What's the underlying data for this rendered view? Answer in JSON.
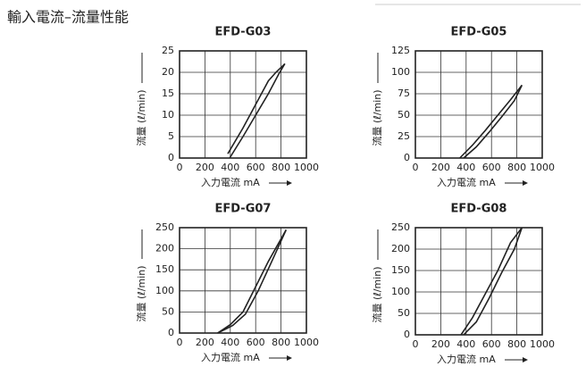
{
  "header": {
    "title": "輸入電流–流量性能"
  },
  "chart_data": [
    {
      "type": "line",
      "title": "EFD-G03",
      "y_label": "流量 (ℓ/min)",
      "x_label": "入力電流 mA",
      "xlim": [
        0,
        1000
      ],
      "xticks": [
        0,
        200,
        400,
        600,
        800,
        1000
      ],
      "ylim": [
        0,
        25
      ],
      "yticks": [
        0,
        5,
        10,
        15,
        20,
        25
      ],
      "grid": true,
      "series": [
        {
          "color": "#222222",
          "x": [
            380,
            500,
            600,
            700,
            760,
            830
          ],
          "values": [
            1,
            7,
            12.5,
            18,
            20,
            22
          ]
        },
        {
          "color": "#222222",
          "x": [
            395,
            500,
            600,
            700,
            780,
            830
          ],
          "values": [
            0,
            5,
            10,
            15,
            19.5,
            22
          ]
        }
      ]
    },
    {
      "type": "line",
      "title": "EFD-G05",
      "y_label": "流量 (ℓ/min)",
      "x_label": "入力電流 mA",
      "xlim": [
        0,
        1000
      ],
      "xticks": [
        0,
        200,
        400,
        600,
        800,
        1000
      ],
      "ylim": [
        0,
        125
      ],
      "yticks": [
        0,
        25,
        50,
        75,
        100,
        125
      ],
      "grid": true,
      "series": [
        {
          "color": "#222222",
          "x": [
            350,
            450,
            550,
            650,
            750,
            840
          ],
          "values": [
            0,
            15,
            32,
            50,
            68,
            85
          ]
        },
        {
          "color": "#222222",
          "x": [
            380,
            480,
            580,
            680,
            780,
            840
          ],
          "values": [
            0,
            13,
            30,
            48,
            67,
            85
          ]
        }
      ]
    },
    {
      "type": "line",
      "title": "EFD-G07",
      "y_label": "流量 (ℓ/min)",
      "x_label": "入力電流 mA",
      "xlim": [
        0,
        1000
      ],
      "xticks": [
        0,
        200,
        400,
        600,
        800,
        1000
      ],
      "ylim": [
        0,
        250
      ],
      "yticks": [
        0,
        50,
        100,
        150,
        200,
        250
      ],
      "grid": true,
      "series": [
        {
          "color": "#222222",
          "x": [
            300,
            400,
            500,
            600,
            700,
            840
          ],
          "values": [
            0,
            20,
            50,
            110,
            170,
            245
          ]
        },
        {
          "color": "#222222",
          "x": [
            300,
            420,
            520,
            620,
            720,
            840
          ],
          "values": [
            0,
            18,
            45,
            100,
            165,
            245
          ]
        }
      ]
    },
    {
      "type": "line",
      "title": "EFD-G08",
      "y_label": "流量 (ℓ/min)",
      "x_label": "入力電流 mA",
      "xlim": [
        0,
        1000
      ],
      "xticks": [
        0,
        200,
        400,
        600,
        800,
        1000
      ],
      "ylim": [
        0,
        250
      ],
      "yticks": [
        0,
        50,
        100,
        150,
        200,
        250
      ],
      "grid": true,
      "series": [
        {
          "color": "#222222",
          "x": [
            360,
            450,
            550,
            650,
            750,
            840
          ],
          "values": [
            0,
            40,
            95,
            150,
            215,
            250
          ]
        },
        {
          "color": "#222222",
          "x": [
            380,
            480,
            580,
            680,
            780,
            840
          ],
          "values": [
            0,
            30,
            85,
            145,
            200,
            250
          ]
        }
      ]
    }
  ]
}
